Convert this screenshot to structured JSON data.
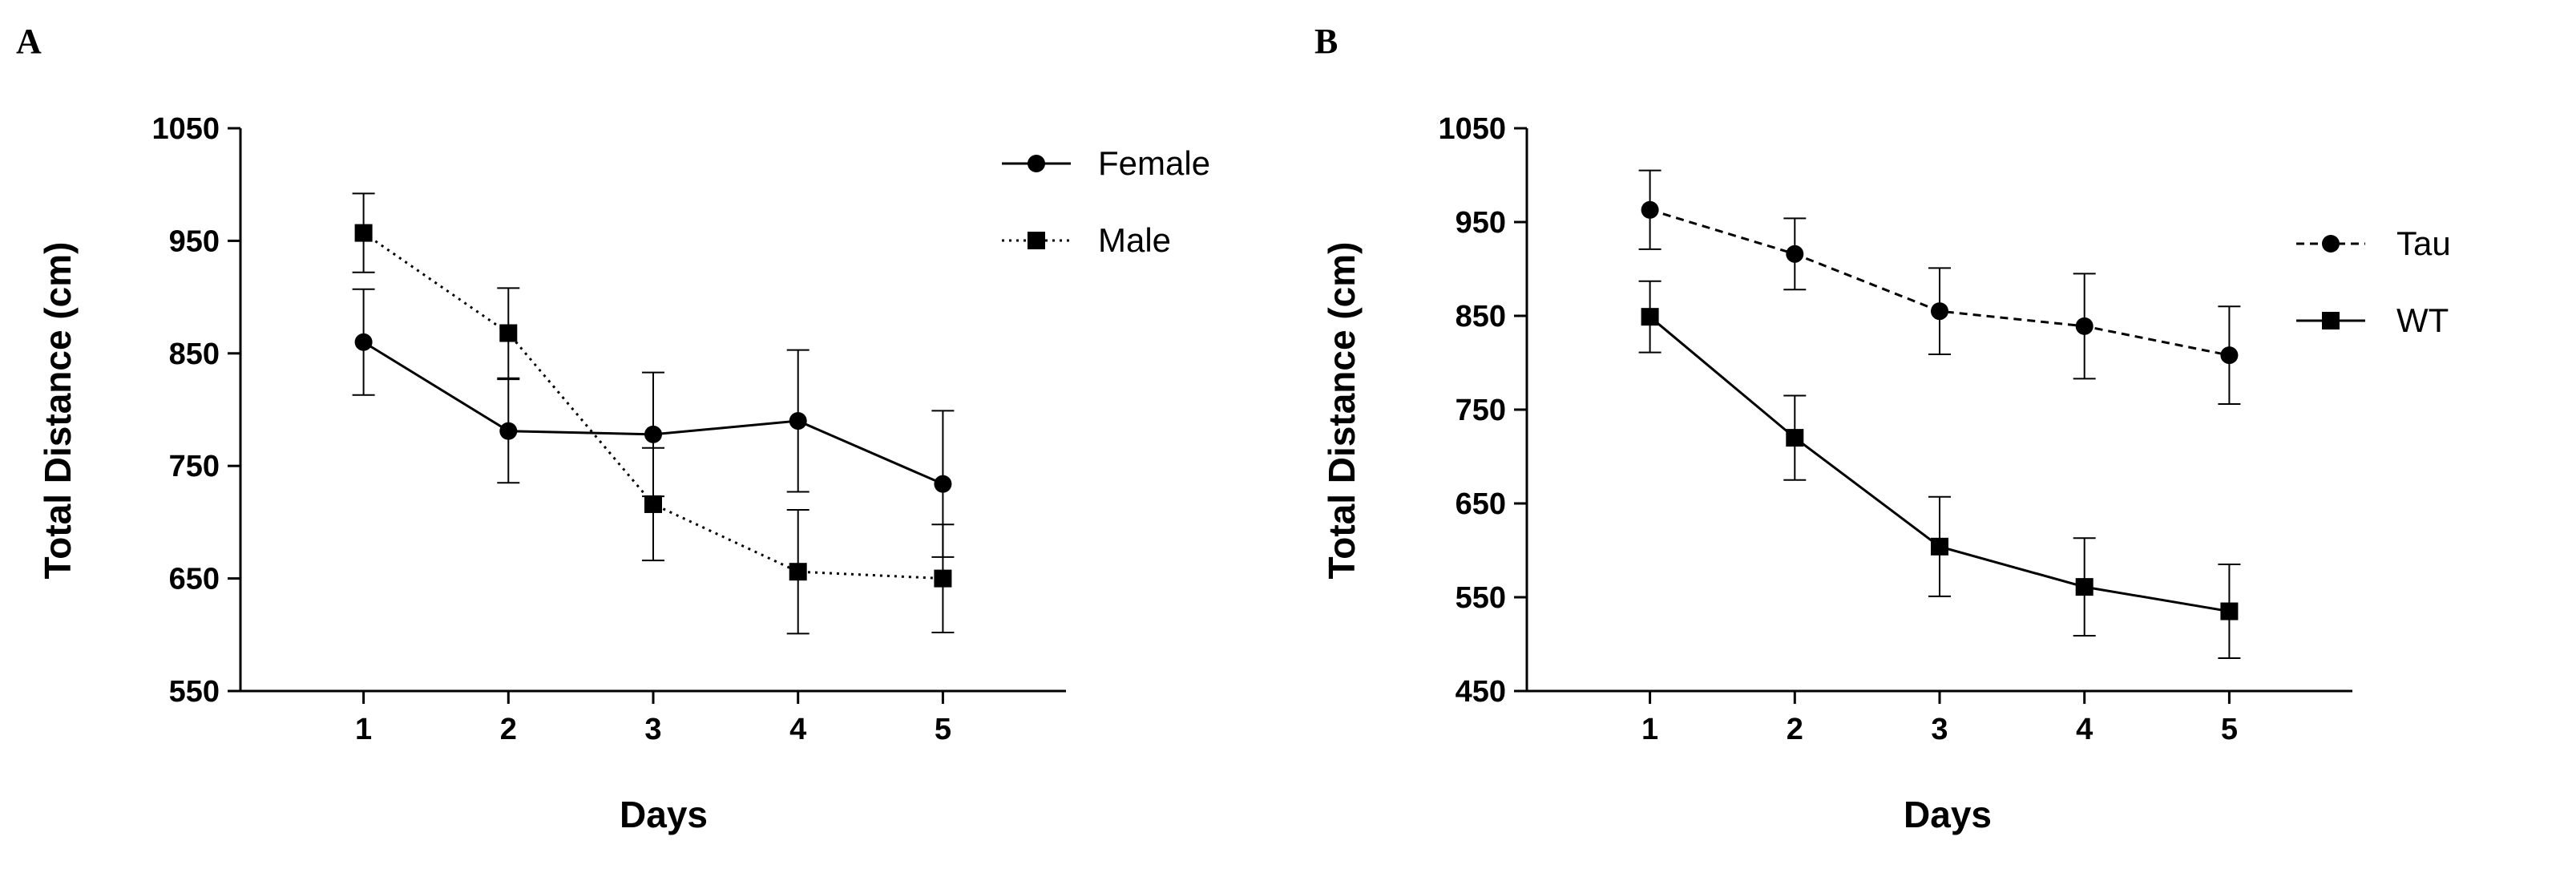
{
  "chart_data": [
    {
      "type": "line",
      "panel_label": "A",
      "title": "",
      "xlabel": "Days",
      "ylabel": "Total Distance (cm)",
      "x": [
        1,
        2,
        3,
        4,
        5
      ],
      "x_tick_labels": [
        "1",
        "2",
        "3",
        "4",
        "5"
      ],
      "xlim": [
        0.15,
        5.85
      ],
      "ylim": [
        550,
        1050
      ],
      "y_ticks": [
        550,
        650,
        750,
        850,
        950,
        1050
      ],
      "y_tick_labels": [
        "550",
        "650",
        "750",
        "850",
        "950",
        "1050"
      ],
      "grid": false,
      "legend_position": "top-right",
      "series": [
        {
          "name": "Female",
          "marker": "circle",
          "line_style": "solid",
          "values": [
            860,
            781,
            778,
            790,
            734
          ],
          "error": [
            47,
            46,
            55,
            63,
            65
          ]
        },
        {
          "name": "Male",
          "marker": "square",
          "line_style": "dotted",
          "values": [
            957,
            868,
            716,
            656,
            650
          ],
          "error": [
            35,
            40,
            50,
            55,
            48
          ]
        }
      ]
    },
    {
      "type": "line",
      "panel_label": "B",
      "title": "",
      "xlabel": "Days",
      "ylabel": "Total Distance (cm)",
      "x": [
        1,
        2,
        3,
        4,
        5
      ],
      "x_tick_labels": [
        "1",
        "2",
        "3",
        "4",
        "5"
      ],
      "xlim": [
        0.15,
        5.85
      ],
      "ylim": [
        450,
        1050
      ],
      "y_ticks": [
        450,
        550,
        650,
        750,
        850,
        950,
        1050
      ],
      "y_tick_labels": [
        "450",
        "550",
        "650",
        "750",
        "850",
        "950",
        "1050"
      ],
      "grid": false,
      "legend_position": "top-right",
      "series": [
        {
          "name": "Tau",
          "marker": "circle",
          "line_style": "dashed",
          "values": [
            963,
            916,
            855,
            839,
            808
          ],
          "error": [
            42,
            38,
            46,
            56,
            52
          ]
        },
        {
          "name": "WT",
          "marker": "square",
          "line_style": "solid",
          "values": [
            849,
            720,
            604,
            561,
            535
          ],
          "error": [
            38,
            45,
            53,
            52,
            50
          ]
        }
      ]
    }
  ]
}
